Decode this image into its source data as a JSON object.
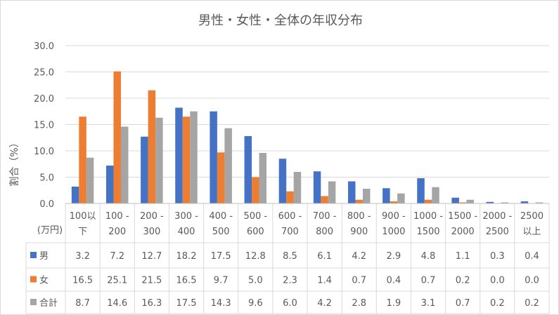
{
  "chart_data": {
    "type": "bar",
    "title": "男性・女性・全体の年収分布",
    "ylabel": "割合（%）",
    "xlabel": "(万円)",
    "ylim": [
      0,
      30
    ],
    "yticks": [
      "0.0",
      "5.0",
      "10.0",
      "15.0",
      "20.0",
      "25.0",
      "30.0"
    ],
    "grid": true,
    "legend": "data-table",
    "categories": [
      [
        "100以",
        "下"
      ],
      [
        "100 -",
        "200"
      ],
      [
        "200 -",
        "300"
      ],
      [
        "300 -",
        "400"
      ],
      [
        "400 -",
        "500"
      ],
      [
        "500 -",
        "600"
      ],
      [
        "600 -",
        "700"
      ],
      [
        "700 -",
        "800"
      ],
      [
        "800 -",
        "900"
      ],
      [
        "900 -",
        "1000"
      ],
      [
        "1000 -",
        "1500"
      ],
      [
        "1500 -",
        "2000"
      ],
      [
        "2000 -",
        "2500"
      ],
      [
        "2500",
        "以上"
      ]
    ],
    "series": [
      {
        "name": "男",
        "color": "#4472c4",
        "values": [
          3.2,
          7.2,
          12.7,
          18.2,
          17.5,
          12.8,
          8.5,
          6.1,
          4.2,
          2.9,
          4.8,
          1.1,
          0.3,
          0.4
        ],
        "labels": [
          "3.2",
          "7.2",
          "12.7",
          "18.2",
          "17.5",
          "12.8",
          "8.5",
          "6.1",
          "4.2",
          "2.9",
          "4.8",
          "1.1",
          "0.3",
          "0.4"
        ]
      },
      {
        "name": "女",
        "color": "#ed7d31",
        "values": [
          16.5,
          25.1,
          21.5,
          16.5,
          9.7,
          5.0,
          2.3,
          1.4,
          0.7,
          0.4,
          0.7,
          0.2,
          0.0,
          0.0
        ],
        "labels": [
          "16.5",
          "25.1",
          "21.5",
          "16.5",
          "9.7",
          "5.0",
          "2.3",
          "1.4",
          "0.7",
          "0.4",
          "0.7",
          "0.2",
          "0.0",
          "0.0"
        ]
      },
      {
        "name": "合計",
        "color": "#a5a5a5",
        "values": [
          8.7,
          14.6,
          16.3,
          17.5,
          14.3,
          9.6,
          6.0,
          4.2,
          2.8,
          1.9,
          3.1,
          0.7,
          0.2,
          0.2
        ],
        "labels": [
          "8.7",
          "14.6",
          "16.3",
          "17.5",
          "14.3",
          "9.6",
          "6.0",
          "4.2",
          "2.8",
          "1.9",
          "3.1",
          "0.7",
          "0.2",
          "0.2"
        ]
      }
    ]
  }
}
